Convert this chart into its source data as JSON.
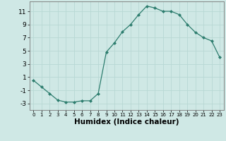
{
  "x": [
    0,
    1,
    2,
    3,
    4,
    5,
    6,
    7,
    8,
    9,
    10,
    11,
    12,
    13,
    14,
    15,
    16,
    17,
    18,
    19,
    20,
    21,
    22,
    23
  ],
  "y": [
    0.5,
    -0.5,
    -1.5,
    -2.5,
    -2.8,
    -2.8,
    -2.6,
    -2.6,
    -1.5,
    4.8,
    6.2,
    7.9,
    9.0,
    10.5,
    11.8,
    11.5,
    11.0,
    11.0,
    10.5,
    9.0,
    7.8,
    7.0,
    6.5,
    4.0
  ],
  "xlabel": "Humidex (Indice chaleur)",
  "line_color": "#2d7d6e",
  "marker": "D",
  "marker_size": 2.0,
  "bg_color": "#cfe8e5",
  "grid_color": "#b8d8d4",
  "xlim": [
    -0.5,
    23.5
  ],
  "ylim": [
    -4.0,
    12.5
  ],
  "yticks": [
    -3,
    -1,
    1,
    3,
    5,
    7,
    9,
    11
  ],
  "xticks": [
    0,
    1,
    2,
    3,
    4,
    5,
    6,
    7,
    8,
    9,
    10,
    11,
    12,
    13,
    14,
    15,
    16,
    17,
    18,
    19,
    20,
    21,
    22,
    23
  ],
  "xlabel_fontsize": 7.5,
  "tick_fontsize": 6.5,
  "xtick_fontsize": 5.0
}
